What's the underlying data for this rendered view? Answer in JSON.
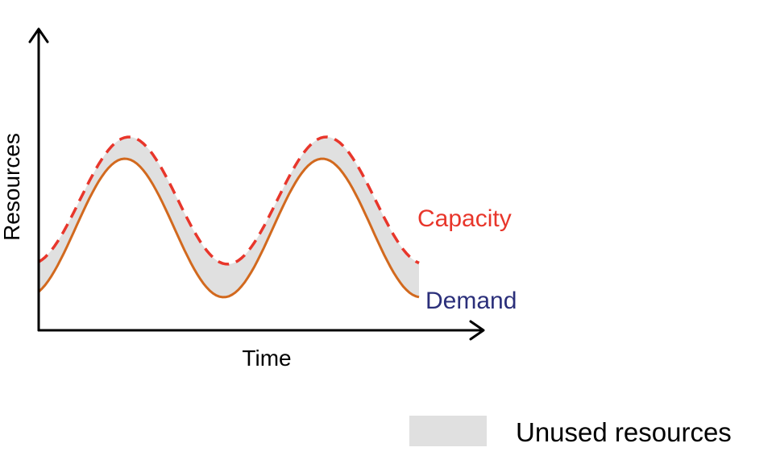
{
  "axes": {
    "x_label": "Time",
    "y_label": "Resources"
  },
  "series": {
    "capacity": {
      "label": "Capacity",
      "color": "#e8362b",
      "style": "dashed"
    },
    "demand": {
      "label": "Demand",
      "color": "#d2691e",
      "label_color": "#2b2f7a",
      "style": "solid"
    }
  },
  "legend": {
    "unused_label": "Unused resources",
    "swatch_color": "#e0e0e0"
  },
  "colors": {
    "axis": "#000000",
    "shaded_area": "#e0e0e0"
  }
}
